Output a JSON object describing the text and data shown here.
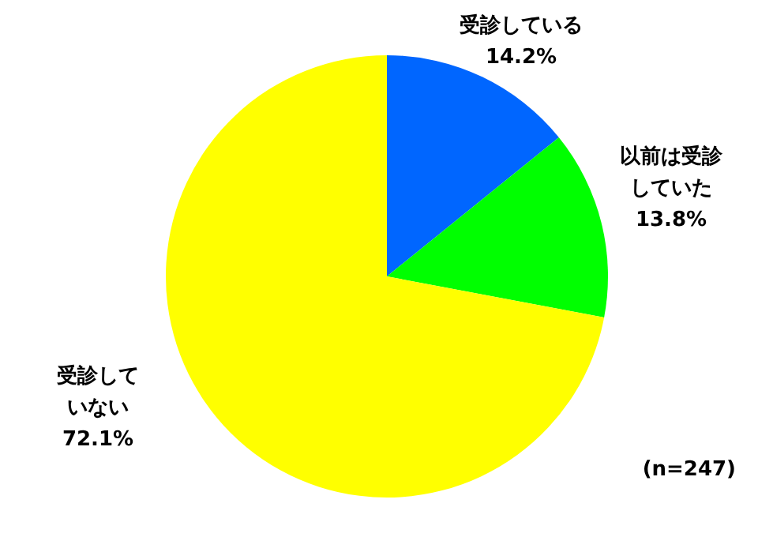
{
  "chart_data": {
    "type": "pie",
    "categories": [
      "受診している",
      "以前は受診していた",
      "受診していない"
    ],
    "values": [
      14.2,
      13.8,
      72.1
    ],
    "value_labels": [
      "14.2%",
      "13.8%",
      "72.1%"
    ],
    "colors": [
      "#0066ff",
      "#00ff00",
      "#ffff00"
    ],
    "annotations": [
      "(n=247)"
    ],
    "legend": false
  }
}
